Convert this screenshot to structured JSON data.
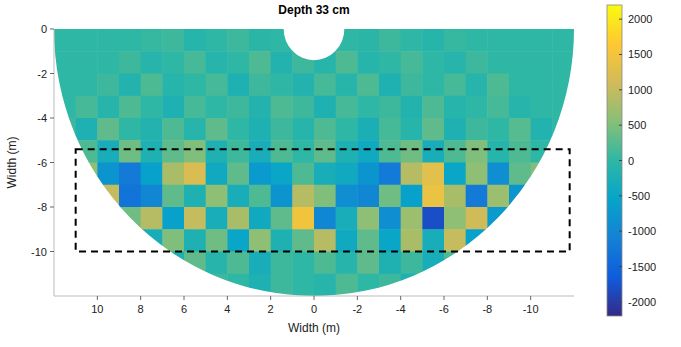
{
  "chart_data": {
    "type": "heatmap",
    "title": "Depth 33 cm",
    "x_label": "Width (m)",
    "y_label": "Width (m)",
    "xlim": [
      12,
      -12
    ],
    "ylim": [
      -12,
      0
    ],
    "xticks": [
      10,
      8,
      6,
      4,
      2,
      0,
      -2,
      -4,
      -6,
      -8,
      -10
    ],
    "yticks": [
      0,
      -2,
      -4,
      -6,
      -8,
      -10
    ],
    "rlim": [
      1.4,
      12
    ],
    "grid": false,
    "x": [
      11.5,
      10.5,
      9.5,
      8.5,
      7.5,
      6.5,
      5.5,
      4.5,
      3.5,
      2.5,
      1.5,
      0.5,
      -0.5,
      -1.5,
      -2.5,
      -3.5,
      -4.5,
      -5.5,
      -6.5,
      -7.5,
      -8.5,
      -9.5,
      -10.5,
      -11.5
    ],
    "y": [
      -0.5,
      -1.5,
      -2.5,
      -3.5,
      -4.5,
      -5.5,
      -6.5,
      -7.5,
      -8.5,
      -9.5,
      -10.5,
      -11.5
    ],
    "values": [
      [
        0,
        0,
        0,
        0,
        50,
        100,
        -100,
        0,
        100,
        -50,
        0,
        0,
        0,
        0,
        -50,
        100,
        0,
        -100,
        50,
        0,
        0,
        0,
        0,
        0
      ],
      [
        0,
        0,
        0,
        100,
        -100,
        0,
        150,
        -100,
        0,
        200,
        -150,
        100,
        -100,
        200,
        -100,
        0,
        150,
        0,
        -100,
        100,
        0,
        0,
        0,
        0
      ],
      [
        0,
        0,
        100,
        -150,
        200,
        -100,
        0,
        150,
        -200,
        100,
        0,
        -150,
        150,
        -100,
        200,
        -200,
        100,
        0,
        150,
        -100,
        200,
        0,
        0,
        0
      ],
      [
        0,
        150,
        -100,
        200,
        0,
        -200,
        150,
        0,
        100,
        -150,
        200,
        100,
        -200,
        150,
        0,
        100,
        -150,
        200,
        -100,
        0,
        150,
        -100,
        0,
        0
      ],
      [
        100,
        -200,
        300,
        0,
        -150,
        200,
        -100,
        300,
        0,
        -200,
        100,
        -100,
        200,
        0,
        -250,
        150,
        -100,
        300,
        -200,
        100,
        0,
        250,
        -150,
        0
      ],
      [
        0,
        200,
        -300,
        400,
        -200,
        300,
        500,
        -200,
        100,
        -300,
        200,
        0,
        300,
        -200,
        -400,
        200,
        400,
        -300,
        200,
        500,
        -100,
        200,
        0,
        0
      ],
      [
        300,
        600,
        -800,
        -1200,
        -600,
        800,
        1200,
        -400,
        300,
        -700,
        -500,
        200,
        -300,
        -400,
        -800,
        -1200,
        900,
        1300,
        -500,
        600,
        -900,
        300,
        500,
        0
      ],
      [
        -400,
        800,
        1000,
        -1300,
        -1000,
        300,
        -200,
        600,
        -300,
        200,
        -800,
        900,
        500,
        -900,
        -1000,
        400,
        -600,
        1400,
        800,
        -1200,
        700,
        -800,
        400,
        200
      ],
      [
        200,
        -900,
        -1400,
        400,
        900,
        -600,
        1000,
        -300,
        800,
        -400,
        300,
        1500,
        -1000,
        -300,
        600,
        -900,
        700,
        -1800,
        600,
        1100,
        -700,
        1000,
        -400,
        0
      ],
      [
        0,
        300,
        -600,
        700,
        -300,
        500,
        -200,
        400,
        -500,
        600,
        -200,
        300,
        900,
        -400,
        300,
        -500,
        800,
        -300,
        1000,
        -600,
        -900,
        400,
        200,
        0
      ],
      [
        0,
        0,
        200,
        -300,
        100,
        -200,
        300,
        -100,
        200,
        -300,
        100,
        0,
        200,
        -100,
        300,
        -200,
        100,
        -300,
        200,
        -100,
        0,
        0,
        0,
        0
      ],
      [
        0,
        0,
        0,
        0,
        -100,
        200,
        -100,
        100,
        0,
        -200,
        100,
        0,
        -100,
        200,
        0,
        100,
        -200,
        100,
        0,
        0,
        0,
        0,
        0,
        0
      ]
    ],
    "colorbar_range": [
      -2200,
      2200
    ],
    "colorbar_ticks": [
      -2000,
      -1500,
      -1000,
      -500,
      0,
      500,
      1000,
      1500,
      2000
    ],
    "highlight_box": {
      "x": [
        11,
        -11.8
      ],
      "y": [
        -5.4,
        -10
      ]
    }
  }
}
